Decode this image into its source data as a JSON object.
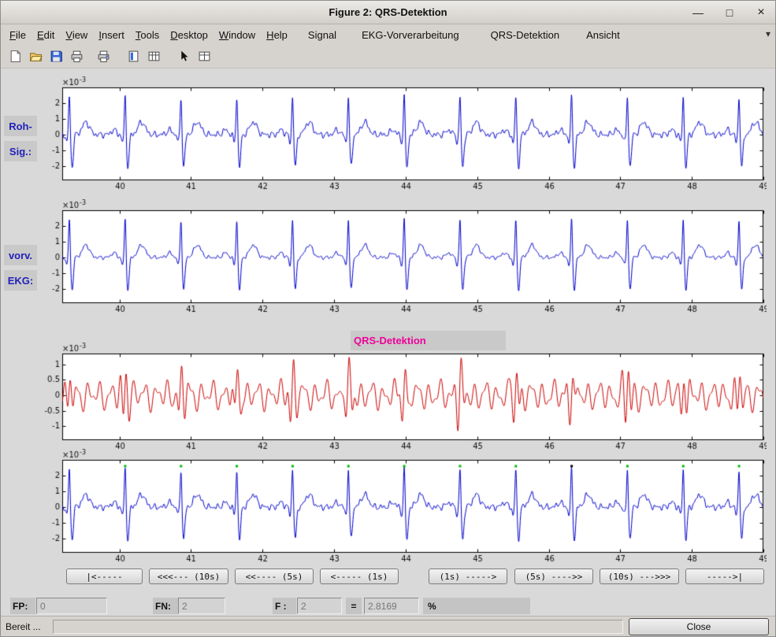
{
  "window": {
    "title": "Figure 2: QRS-Detektion",
    "controls": {
      "minimize": "—",
      "maximize": "□",
      "close": "×"
    }
  },
  "menu": {
    "items": [
      {
        "label": "File",
        "underline": 0
      },
      {
        "label": "Edit",
        "underline": 0
      },
      {
        "label": "View",
        "underline": 0
      },
      {
        "label": "Insert",
        "underline": 0
      },
      {
        "label": "Tools",
        "underline": 0
      },
      {
        "label": "Desktop",
        "underline": 0
      },
      {
        "label": "Window",
        "underline": 0
      },
      {
        "label": "Help",
        "underline": 0
      },
      {
        "label": "Signal",
        "underline": -1
      },
      {
        "label": "EKG-Vorverarbeitung",
        "underline": -1
      },
      {
        "label": "QRS-Detektion",
        "underline": -1
      },
      {
        "label": "Ansicht",
        "underline": -1
      }
    ],
    "overflow_icon": "▾"
  },
  "toolbar": {
    "icons": [
      "new",
      "open",
      "save",
      "print",
      "page-setup",
      "plot-tools",
      "legend-grid",
      "pointer",
      "property-grid"
    ]
  },
  "labels": {
    "plot1_line1": "Roh-",
    "plot1_line2": "Sig.:",
    "plot2_line1": "vorv.",
    "plot2_line2": "EKG:",
    "plot3_title": "QRS-Detektion"
  },
  "colors": {
    "trace_blue": "#0000cc",
    "trace_red": "#cc0000",
    "marker_green": "#00bb00",
    "marker_missed": "#000000",
    "side_label_blue": "#2222bb",
    "title_magenta": "#ee0099"
  },
  "nav_buttons": [
    "|<-----",
    "<<<--- (10s)",
    "<<---- (5s)",
    "<----- (1s)",
    "(1s) ----->",
    "(5s) ---->>",
    "(10s) --->>>",
    "----->|"
  ],
  "stats": {
    "fp_label": "FP:",
    "fp_value": "0",
    "fn_label": "FN:",
    "fn_value": "2",
    "f_label": "F :",
    "f_value": "2",
    "equals_sign": "=",
    "result_value": "2.8169",
    "percent_sign": "%"
  },
  "statusbar": {
    "text": "Bereit ...",
    "close_label": "Close"
  },
  "chart_data": [
    {
      "name": "raw-ecg-signal",
      "type": "line",
      "signal": "ecg",
      "line_color": "#0000cc",
      "x_range": [
        39.2,
        49.0
      ],
      "x_ticks": [
        40,
        41,
        42,
        43,
        44,
        45,
        46,
        47,
        48,
        49
      ],
      "y_range": [
        -2.9,
        3.0
      ],
      "y_ticks": [
        -2,
        -1,
        0,
        1,
        2
      ],
      "y_unit_exponent": {
        "base": "×10",
        "sup": "-3"
      },
      "beat_times": [
        39.3,
        40.08,
        40.86,
        41.64,
        42.42,
        43.2,
        43.98,
        44.76,
        45.54,
        46.32,
        47.1,
        47.88,
        48.66
      ],
      "noise_scale": 1.0
    },
    {
      "name": "preprocessed-ecg-signal",
      "type": "line",
      "signal": "ecg",
      "line_color": "#0000cc",
      "x_range": [
        39.2,
        49.0
      ],
      "x_ticks": [
        40,
        41,
        42,
        43,
        44,
        45,
        46,
        47,
        48,
        49
      ],
      "y_range": [
        -2.9,
        3.0
      ],
      "y_ticks": [
        -2,
        -1,
        0,
        1,
        2
      ],
      "y_unit_exponent": {
        "base": "×10",
        "sup": "-3"
      },
      "beat_times": [
        39.3,
        40.08,
        40.86,
        41.64,
        42.42,
        43.2,
        43.98,
        44.76,
        45.54,
        46.32,
        47.1,
        47.88,
        48.66
      ],
      "noise_scale": 0.6
    },
    {
      "name": "qrs-bandpass-signal",
      "type": "line",
      "signal": "bandpass",
      "line_color": "#cc0000",
      "x_range": [
        39.2,
        49.0
      ],
      "x_ticks": [
        40,
        41,
        42,
        43,
        44,
        45,
        46,
        47,
        48,
        49
      ],
      "y_range": [
        -1.45,
        1.35
      ],
      "y_ticks": [
        -1,
        -0.5,
        0,
        0.5,
        1
      ],
      "y_unit_exponent": {
        "base": "×10",
        "sup": "-3"
      },
      "beat_times": [
        39.3,
        40.08,
        40.86,
        41.64,
        42.42,
        43.2,
        43.98,
        44.76,
        45.54,
        46.32,
        47.1,
        47.88,
        48.66
      ],
      "noise_scale": 1.0
    },
    {
      "name": "detection-result-signal",
      "type": "line",
      "signal": "ecg",
      "line_color": "#0000cc",
      "x_range": [
        39.2,
        49.0
      ],
      "x_ticks": [
        40,
        41,
        42,
        43,
        44,
        45,
        46,
        47,
        48,
        49
      ],
      "y_range": [
        -2.9,
        3.0
      ],
      "y_ticks": [
        -2,
        -1,
        0,
        1,
        2
      ],
      "y_unit_exponent": {
        "base": "×10",
        "sup": "-3"
      },
      "beat_times": [
        39.3,
        40.08,
        40.86,
        41.64,
        42.42,
        43.2,
        43.98,
        44.76,
        45.54,
        46.32,
        47.1,
        47.88,
        48.66
      ],
      "noise_scale": 1.0,
      "markers": {
        "y": 2.6,
        "times": [
          40.08,
          40.86,
          41.64,
          42.42,
          43.2,
          43.98,
          44.76,
          45.54,
          46.32,
          47.1,
          47.88,
          48.66
        ],
        "colors": [
          "#00bb00",
          "#00bb00",
          "#00bb00",
          "#00bb00",
          "#00bb00",
          "#00bb00",
          "#00bb00",
          "#00bb00",
          "#000000",
          "#00bb00",
          "#00bb00",
          "#00bb00"
        ]
      }
    }
  ]
}
